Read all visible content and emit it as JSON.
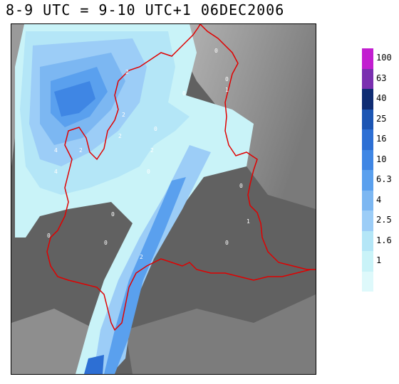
{
  "title": "8-9 UTC = 9-10 UTC+1 06DEC2006",
  "legend": {
    "entries": [
      {
        "label": "100",
        "color": "#c21ed0"
      },
      {
        "label": "63",
        "color": "#7a2fb0"
      },
      {
        "label": "40",
        "color": "#0f2c73"
      },
      {
        "label": "25",
        "color": "#1c55b3"
      },
      {
        "label": "16",
        "color": "#2d6fd4"
      },
      {
        "label": "10",
        "color": "#3f86e4"
      },
      {
        "label": "6.3",
        "color": "#5aa0ee"
      },
      {
        "label": "4",
        "color": "#7cb7f2"
      },
      {
        "label": "2.5",
        "color": "#9ccdf7"
      },
      {
        "label": "1.6",
        "color": "#b4e6f7"
      },
      {
        "label": "1",
        "color": "#c9f3f8"
      },
      {
        "label": "",
        "color": "#def9fb"
      }
    ]
  },
  "station_values": [
    "0",
    "2",
    "4",
    "0",
    "2",
    "2",
    "1",
    "0",
    "0",
    "2",
    "4",
    "2",
    "0",
    "0",
    "0",
    "1",
    "0",
    "0",
    "2",
    "0"
  ],
  "colors": {
    "boundary": "#e00000",
    "lowland": "#616161",
    "mountain_light": "#c8c8c8",
    "mountain_dark": "#858585"
  }
}
